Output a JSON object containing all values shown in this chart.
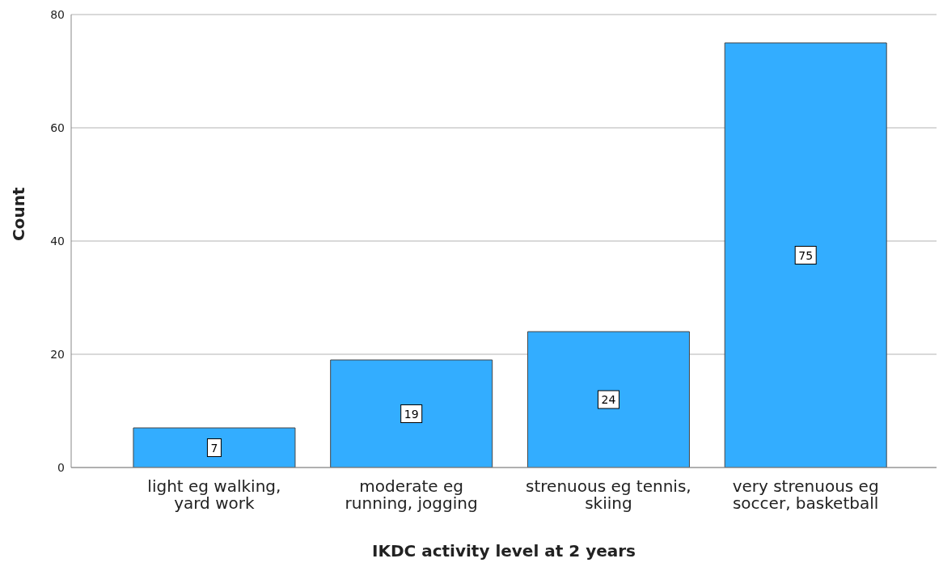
{
  "chart_data": {
    "type": "bar",
    "xlabel": "IKDC activity level at 2 years",
    "ylabel": "Count",
    "categories": [
      "light eg walking,\nyard work",
      "moderate eg\nrunning, jogging",
      "strenuous eg tennis,\nskiing",
      "very strenuous eg\nsoccer, basketball"
    ],
    "values": [
      7,
      19,
      24,
      75
    ],
    "color": "#33adff",
    "ylim": [
      0,
      80
    ],
    "yticks": [
      0,
      20,
      40,
      60,
      80
    ],
    "grid": "y",
    "data_labels": true
  }
}
